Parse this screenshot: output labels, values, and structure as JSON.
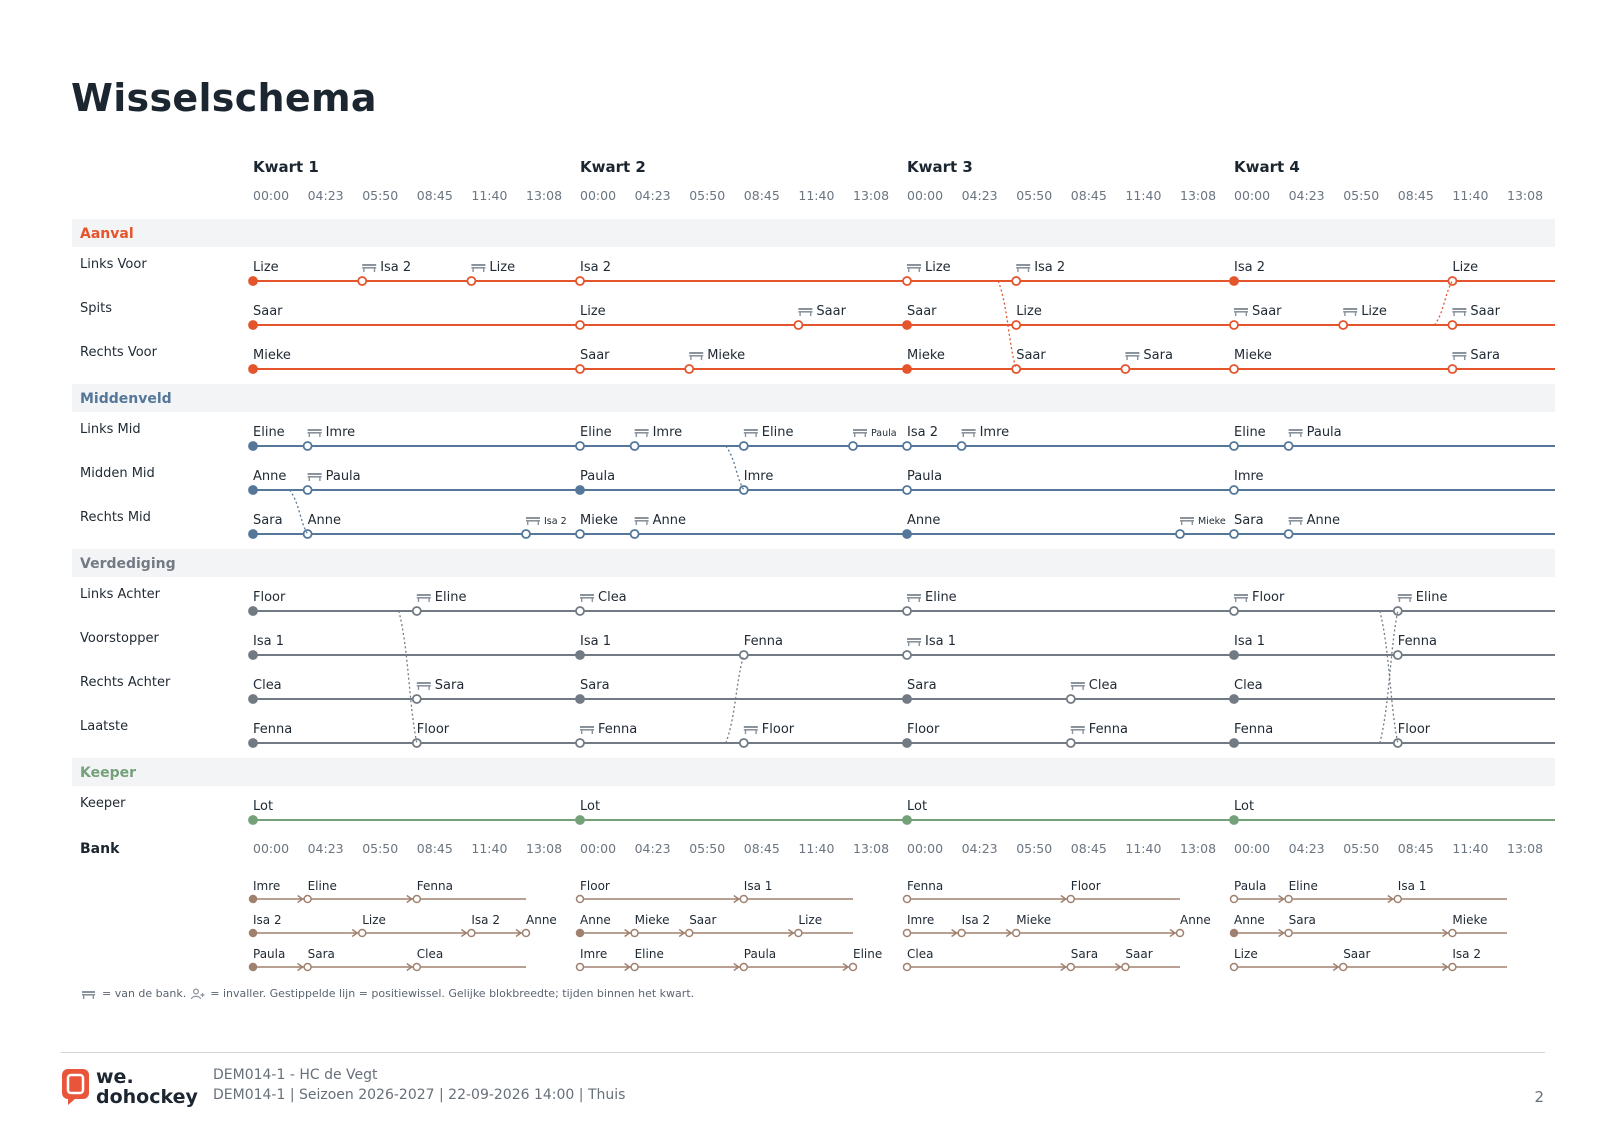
{
  "title": "Wisselschema",
  "quarters": [
    "Kwart 1",
    "Kwart 2",
    "Kwart 3",
    "Kwart 4"
  ],
  "time_ticks": [
    "00:00",
    "04:23",
    "05:50",
    "08:45",
    "11:40",
    "13:08"
  ],
  "colors": {
    "Aanval": "#e4552c",
    "Middenveld": "#54779a",
    "Verdediging": "#727a84",
    "Keeper": "#74a17a",
    "bench": "#a0806e",
    "group_bg": "#f3f4f6",
    "title": "#1c2630"
  },
  "groups": [
    {
      "name": "Aanval",
      "positions": [
        {
          "label": "Links Voor",
          "segments": [
            {
              "q": 0,
              "s": 0,
              "n": "Lize",
              "st": "filled"
            },
            {
              "q": 0,
              "s": 2,
              "n": "Isa 2",
              "st": "bench"
            },
            {
              "q": 0,
              "s": 4,
              "n": "Lize",
              "st": "bench"
            },
            {
              "q": 1,
              "s": 0,
              "n": "Isa 2",
              "st": "open"
            },
            {
              "q": 2,
              "s": 0,
              "n": "Lize",
              "st": "bench"
            },
            {
              "q": 2,
              "s": 2,
              "n": "Isa 2",
              "st": "bench"
            },
            {
              "q": 3,
              "s": 0,
              "n": "Isa 2",
              "st": "filled"
            },
            {
              "q": 3,
              "s": 4,
              "n": "Lize",
              "st": "open"
            }
          ]
        },
        {
          "label": "Spits",
          "segments": [
            {
              "q": 0,
              "s": 0,
              "n": "Saar",
              "st": "filled"
            },
            {
              "q": 1,
              "s": 0,
              "n": "Lize",
              "st": "open"
            },
            {
              "q": 1,
              "s": 4,
              "n": "Saar",
              "st": "bench"
            },
            {
              "q": 2,
              "s": 0,
              "n": "Saar",
              "st": "filled"
            },
            {
              "q": 2,
              "s": 2,
              "n": "Lize",
              "st": "open"
            },
            {
              "q": 3,
              "s": 0,
              "n": "Saar",
              "st": "bench"
            },
            {
              "q": 3,
              "s": 2,
              "n": "Lize",
              "st": "bench"
            },
            {
              "q": 3,
              "s": 4,
              "n": "Saar",
              "st": "bench"
            }
          ]
        },
        {
          "label": "Rechts Voor",
          "segments": [
            {
              "q": 0,
              "s": 0,
              "n": "Mieke",
              "st": "filled"
            },
            {
              "q": 1,
              "s": 0,
              "n": "Saar",
              "st": "open"
            },
            {
              "q": 1,
              "s": 2,
              "n": "Mieke",
              "st": "bench"
            },
            {
              "q": 2,
              "s": 0,
              "n": "Mieke",
              "st": "filled"
            },
            {
              "q": 2,
              "s": 2,
              "n": "Saar",
              "st": "open"
            },
            {
              "q": 2,
              "s": 4,
              "n": "Sara",
              "st": "bench"
            },
            {
              "q": 3,
              "s": 0,
              "n": "Mieke",
              "st": "open"
            },
            {
              "q": 3,
              "s": 4,
              "n": "Sara",
              "st": "bench"
            }
          ]
        }
      ]
    },
    {
      "name": "Middenveld",
      "positions": [
        {
          "label": "Links Mid",
          "segments": [
            {
              "q": 0,
              "s": 0,
              "n": "Eline",
              "st": "filled"
            },
            {
              "q": 0,
              "s": 1,
              "n": "Imre",
              "st": "bench"
            },
            {
              "q": 1,
              "s": 0,
              "n": "Eline",
              "st": "open"
            },
            {
              "q": 1,
              "s": 1,
              "n": "Imre",
              "st": "bench"
            },
            {
              "q": 1,
              "s": 3,
              "n": "Eline",
              "st": "bench"
            },
            {
              "q": 1,
              "s": 5,
              "n": "Paula",
              "st": "bench",
              "small": true
            },
            {
              "q": 2,
              "s": 0,
              "n": "Isa 2",
              "st": "open"
            },
            {
              "q": 2,
              "s": 1,
              "n": "Imre",
              "st": "bench"
            },
            {
              "q": 3,
              "s": 0,
              "n": "Eline",
              "st": "open"
            },
            {
              "q": 3,
              "s": 1,
              "n": "Paula",
              "st": "bench"
            }
          ]
        },
        {
          "label": "Midden Mid",
          "segments": [
            {
              "q": 0,
              "s": 0,
              "n": "Anne",
              "st": "filled"
            },
            {
              "q": 0,
              "s": 1,
              "n": "Paula",
              "st": "bench"
            },
            {
              "q": 1,
              "s": 0,
              "n": "Paula",
              "st": "filled"
            },
            {
              "q": 1,
              "s": 3,
              "n": "Imre",
              "st": "open"
            },
            {
              "q": 2,
              "s": 0,
              "n": "Paula",
              "st": "open"
            },
            {
              "q": 3,
              "s": 0,
              "n": "Imre",
              "st": "open"
            }
          ]
        },
        {
          "label": "Rechts Mid",
          "segments": [
            {
              "q": 0,
              "s": 0,
              "n": "Sara",
              "st": "filled"
            },
            {
              "q": 0,
              "s": 1,
              "n": "Anne",
              "st": "open"
            },
            {
              "q": 0,
              "s": 5,
              "n": "Isa 2",
              "st": "bench",
              "small": true
            },
            {
              "q": 1,
              "s": 0,
              "n": "Mieke",
              "st": "open"
            },
            {
              "q": 1,
              "s": 1,
              "n": "Anne",
              "st": "bench"
            },
            {
              "q": 2,
              "s": 0,
              "n": "Anne",
              "st": "filled"
            },
            {
              "q": 2,
              "s": 5,
              "n": "Mieke",
              "st": "bench",
              "small": true
            },
            {
              "q": 3,
              "s": 0,
              "n": "Sara",
              "st": "open"
            },
            {
              "q": 3,
              "s": 1,
              "n": "Anne",
              "st": "bench"
            }
          ]
        }
      ]
    },
    {
      "name": "Verdediging",
      "positions": [
        {
          "label": "Links Achter",
          "segments": [
            {
              "q": 0,
              "s": 0,
              "n": "Floor",
              "st": "filled"
            },
            {
              "q": 0,
              "s": 3,
              "n": "Eline",
              "st": "bench"
            },
            {
              "q": 1,
              "s": 0,
              "n": "Clea",
              "st": "bench"
            },
            {
              "q": 2,
              "s": 0,
              "n": "Eline",
              "st": "bench"
            },
            {
              "q": 3,
              "s": 0,
              "n": "Floor",
              "st": "bench"
            },
            {
              "q": 3,
              "s": 3,
              "n": "Eline",
              "st": "bench"
            }
          ]
        },
        {
          "label": "Voorstopper",
          "segments": [
            {
              "q": 0,
              "s": 0,
              "n": "Isa 1",
              "st": "filled"
            },
            {
              "q": 1,
              "s": 0,
              "n": "Isa 1",
              "st": "filled"
            },
            {
              "q": 1,
              "s": 3,
              "n": "Fenna",
              "st": "open"
            },
            {
              "q": 2,
              "s": 0,
              "n": "Isa 1",
              "st": "bench"
            },
            {
              "q": 3,
              "s": 0,
              "n": "Isa 1",
              "st": "filled"
            },
            {
              "q": 3,
              "s": 3,
              "n": "Fenna",
              "st": "open"
            }
          ]
        },
        {
          "label": "Rechts Achter",
          "segments": [
            {
              "q": 0,
              "s": 0,
              "n": "Clea",
              "st": "filled"
            },
            {
              "q": 0,
              "s": 3,
              "n": "Sara",
              "st": "bench"
            },
            {
              "q": 1,
              "s": 0,
              "n": "Sara",
              "st": "filled"
            },
            {
              "q": 2,
              "s": 0,
              "n": "Sara",
              "st": "filled"
            },
            {
              "q": 2,
              "s": 3,
              "n": "Clea",
              "st": "bench"
            },
            {
              "q": 3,
              "s": 0,
              "n": "Clea",
              "st": "filled"
            }
          ]
        },
        {
          "label": "Laatste",
          "segments": [
            {
              "q": 0,
              "s": 0,
              "n": "Fenna",
              "st": "filled"
            },
            {
              "q": 0,
              "s": 3,
              "n": "Floor",
              "st": "open"
            },
            {
              "q": 1,
              "s": 0,
              "n": "Fenna",
              "st": "bench"
            },
            {
              "q": 1,
              "s": 3,
              "n": "Floor",
              "st": "bench"
            },
            {
              "q": 2,
              "s": 0,
              "n": "Floor",
              "st": "filled"
            },
            {
              "q": 2,
              "s": 3,
              "n": "Fenna",
              "st": "bench"
            },
            {
              "q": 3,
              "s": 0,
              "n": "Fenna",
              "st": "filled"
            },
            {
              "q": 3,
              "s": 3,
              "n": "Floor",
              "st": "open"
            }
          ]
        }
      ]
    },
    {
      "name": "Keeper",
      "positions": [
        {
          "label": "Keeper",
          "segments": [
            {
              "q": 0,
              "s": 0,
              "n": "Lot",
              "st": "filled"
            },
            {
              "q": 1,
              "s": 0,
              "n": "Lot",
              "st": "filled"
            },
            {
              "q": 2,
              "s": 0,
              "n": "Lot",
              "st": "filled"
            },
            {
              "q": 3,
              "s": 0,
              "n": "Lot",
              "st": "filled"
            }
          ]
        }
      ]
    }
  ],
  "position_swaps": [
    {
      "g": 0,
      "q": 2,
      "s": 2,
      "from": 0,
      "to": 2
    },
    {
      "g": 0,
      "q": 3,
      "s": 4,
      "from": 1,
      "to": 0
    },
    {
      "g": 1,
      "q": 0,
      "s": 1,
      "from": 1,
      "to": 2
    },
    {
      "g": 1,
      "q": 1,
      "s": 3,
      "from": 0,
      "to": 1
    },
    {
      "g": 2,
      "q": 0,
      "s": 3,
      "from": 0,
      "to": 3
    },
    {
      "g": 2,
      "q": 1,
      "s": 3,
      "from": 3,
      "to": 1
    },
    {
      "g": 2,
      "q": 3,
      "s": 3,
      "from": 0,
      "to": 3
    },
    {
      "g": 2,
      "q": 3,
      "s": 3,
      "from": 3,
      "to": 0
    }
  ],
  "bench_label": "Bank",
  "bench": [
    [
      [
        {
          "s": 0,
          "n": "Imre",
          "st": "filled"
        },
        {
          "s": 1,
          "n": "Eline",
          "st": "arrow"
        },
        {
          "s": 3,
          "n": "Fenna",
          "st": "arrow"
        }
      ],
      [
        {
          "s": 0,
          "n": "Isa 2",
          "st": "filled"
        },
        {
          "s": 2,
          "n": "Lize",
          "st": "arrow"
        },
        {
          "s": 4,
          "n": "Isa 2",
          "st": "arrow"
        },
        {
          "s": 5,
          "n": "Anne",
          "st": "arrow"
        }
      ],
      [
        {
          "s": 0,
          "n": "Paula",
          "st": "filled"
        },
        {
          "s": 1,
          "n": "Sara",
          "st": "arrow"
        },
        {
          "s": 3,
          "n": "Clea",
          "st": "arrow"
        }
      ]
    ],
    [
      [
        {
          "s": 0,
          "n": "Floor",
          "st": "open"
        },
        {
          "s": 3,
          "n": "Isa 1",
          "st": "arrow"
        }
      ],
      [
        {
          "s": 0,
          "n": "Anne",
          "st": "filled"
        },
        {
          "s": 1,
          "n": "Mieke",
          "st": "arrow"
        },
        {
          "s": 2,
          "n": "Saar",
          "st": "arrow"
        },
        {
          "s": 4,
          "n": "Lize",
          "st": "arrow"
        }
      ],
      [
        {
          "s": 0,
          "n": "Imre",
          "st": "open"
        },
        {
          "s": 1,
          "n": "Eline",
          "st": "arrow"
        },
        {
          "s": 3,
          "n": "Paula",
          "st": "arrow"
        },
        {
          "s": 5,
          "n": "Eline",
          "st": "arrow"
        }
      ]
    ],
    [
      [
        {
          "s": 0,
          "n": "Fenna",
          "st": "open"
        },
        {
          "s": 3,
          "n": "Floor",
          "st": "arrow"
        }
      ],
      [
        {
          "s": 0,
          "n": "Imre",
          "st": "open"
        },
        {
          "s": 1,
          "n": "Isa 2",
          "st": "arrow"
        },
        {
          "s": 2,
          "n": "Mieke",
          "st": "arrow"
        },
        {
          "s": 5,
          "n": "Anne",
          "st": "arrow"
        }
      ],
      [
        {
          "s": 0,
          "n": "Clea",
          "st": "open"
        },
        {
          "s": 3,
          "n": "Sara",
          "st": "arrow"
        },
        {
          "s": 4,
          "n": "Saar",
          "st": "arrow"
        }
      ]
    ],
    [
      [
        {
          "s": 0,
          "n": "Paula",
          "st": "open"
        },
        {
          "s": 1,
          "n": "Eline",
          "st": "arrow"
        },
        {
          "s": 3,
          "n": "Isa 1",
          "st": "arrow"
        }
      ],
      [
        {
          "s": 0,
          "n": "Anne",
          "st": "filled"
        },
        {
          "s": 1,
          "n": "Sara",
          "st": "arrow"
        },
        {
          "s": 4,
          "n": "Mieke",
          "st": "arrow"
        }
      ],
      [
        {
          "s": 0,
          "n": "Lize",
          "st": "open"
        },
        {
          "s": 2,
          "n": "Saar",
          "st": "arrow"
        },
        {
          "s": 4,
          "n": "Isa 2",
          "st": "arrow"
        }
      ]
    ]
  ],
  "legend": {
    "bench_icon": "bench-icon",
    "sub_icon": "person-add-icon",
    "text_bench": "= van de bank.",
    "text_sub": "= invaller. Gestippelde lijn = positiewissel. Gelijke blokbreedte; tijden binnen het kwart."
  },
  "footer": {
    "logo_line1": "we.",
    "logo_line2": "dohockey",
    "line1": "DEM014-1 - HC de Vegt",
    "line2": "DEM014-1 | Seizoen 2026-2027 | 22-09-2026 14:00 | Thuis",
    "page": "2"
  }
}
